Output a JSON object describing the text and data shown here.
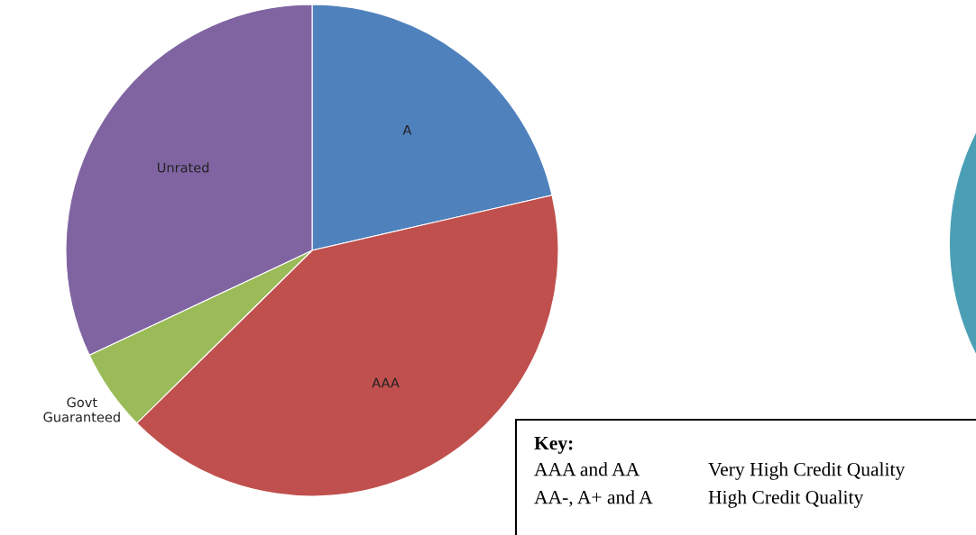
{
  "chart_data": {
    "type": "pie",
    "categories": [
      "A",
      "AAA",
      "Govt\nGuaranteed",
      "Unrated"
    ],
    "values": [
      21.4,
      41.2,
      5.4,
      32.0
    ],
    "colors": [
      "#4f81bd",
      "#c0504d",
      "#9bbb59",
      "#8064a2"
    ],
    "annotations": [
      "Key:",
      "AAA and AA",
      "Very High Credit Quality",
      "AA-, A+ and A",
      "High Credit Quality"
    ]
  }
}
